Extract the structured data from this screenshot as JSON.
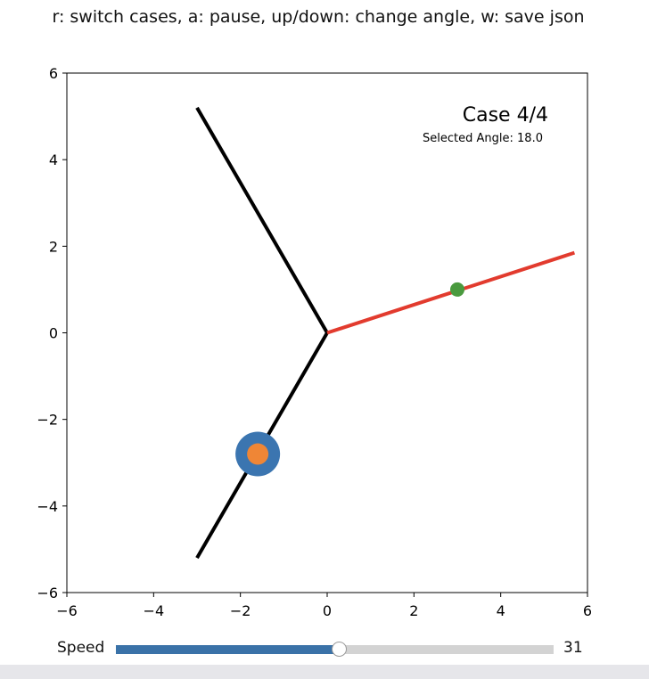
{
  "instructions": "r: switch cases, a: pause, up/down: change angle, w: save json",
  "slider": {
    "label": "Speed",
    "value": "31",
    "fraction": 0.51
  },
  "chart_data": {
    "type": "line",
    "title": "",
    "xlabel": "",
    "ylabel": "",
    "xlim": [
      -6,
      6
    ],
    "ylim": [
      -6,
      6
    ],
    "xticks": [
      -6,
      -4,
      -2,
      0,
      2,
      4,
      6
    ],
    "yticks": [
      -6,
      -4,
      -2,
      0,
      2,
      4,
      6
    ],
    "grid": false,
    "annotations": {
      "case_label": "Case 4/4",
      "angle_label": "Selected Angle: 18.0"
    },
    "segments": [
      {
        "id": "upper-left-branch",
        "color": "#000000",
        "points": [
          [
            -3.0,
            5.2
          ],
          [
            0,
            0
          ]
        ]
      },
      {
        "id": "lower-left-branch",
        "color": "#000000",
        "points": [
          [
            0,
            0
          ],
          [
            -3.0,
            -5.2
          ]
        ]
      },
      {
        "id": "selected-branch",
        "color": "#e23b2e",
        "points": [
          [
            0,
            0
          ],
          [
            5.7,
            1.85
          ]
        ]
      }
    ],
    "markers": [
      {
        "id": "target-point",
        "x": 3.0,
        "y": 1.0,
        "color": "#4a9a3e",
        "size": "small"
      },
      {
        "id": "ball-outer",
        "x": -1.6,
        "y": -2.8,
        "color": "#3b75b0",
        "size": "large"
      },
      {
        "id": "ball-inner",
        "x": -1.6,
        "y": -2.8,
        "color": "#ef8636",
        "size": "medium"
      }
    ]
  }
}
